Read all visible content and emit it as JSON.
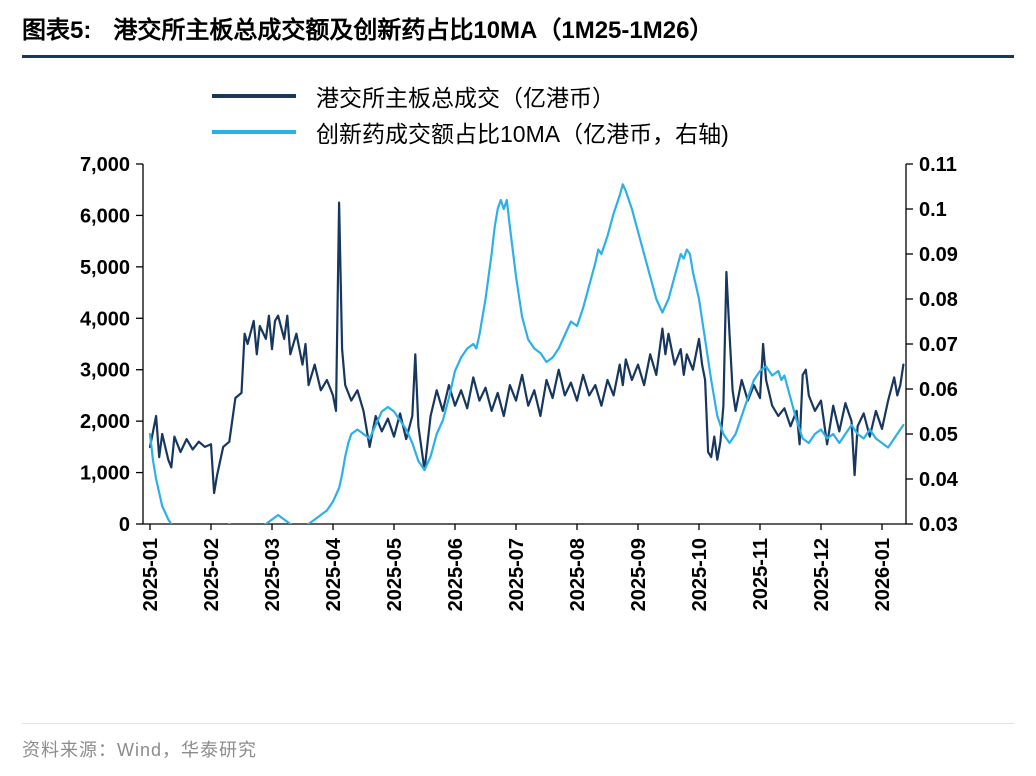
{
  "header": {
    "figure_label": "图表5:",
    "title": "港交所主板总成交额及创新药占比10MA（1M25-1M26）"
  },
  "legend": [
    {
      "label": "港交所主板总成交（亿港币）",
      "color": "#17375e"
    },
    {
      "label": "创新药成交额占比10MA（亿港币，右轴)",
      "color": "#2cb0e8"
    }
  ],
  "footer": {
    "source": "资料来源：Wind，华泰研究"
  },
  "chart_data": {
    "type": "line",
    "title": "港交所主板总成交额及创新药占比10MA（1M25-1M26）",
    "xlabel": "",
    "ylabel_left": "港交所主板总成交（亿港币）",
    "ylabel_right": "创新药成交额占比10MA",
    "grid": false,
    "legend_position": "top",
    "x_axis": {
      "unit": "month",
      "tick_labels": [
        "2025-01",
        "2025-02",
        "2025-03",
        "2025-04",
        "2025-05",
        "2025-06",
        "2025-07",
        "2025-08",
        "2025-09",
        "2025-10",
        "2025-11",
        "2025-12",
        "2026-01"
      ]
    },
    "y_left": {
      "min": 0,
      "max": 7000,
      "ticks": [
        [
          0,
          "0"
        ],
        [
          1000,
          "1,000"
        ],
        [
          2000,
          "2,000"
        ],
        [
          3000,
          "3,000"
        ],
        [
          4000,
          "4,000"
        ],
        [
          5000,
          "5,000"
        ],
        [
          6000,
          "6,000"
        ],
        [
          7000,
          "7,000"
        ]
      ]
    },
    "y_right": {
      "min": 0.03,
      "max": 0.11,
      "ticks": [
        [
          0.03,
          "0.03"
        ],
        [
          0.04,
          "0.04"
        ],
        [
          0.05,
          "0.05"
        ],
        [
          0.06,
          "0.06"
        ],
        [
          0.07,
          "0.07"
        ],
        [
          0.08,
          "0.08"
        ],
        [
          0.09,
          "0.09"
        ],
        [
          0.1,
          "0.1"
        ],
        [
          0.11,
          "0.11"
        ]
      ]
    },
    "series": [
      {
        "name": "港交所主板总成交（亿港币）",
        "axis": "left",
        "color": "#17375e",
        "points": [
          [
            0,
            1500
          ],
          [
            0.1,
            2100
          ],
          [
            0.15,
            1300
          ],
          [
            0.2,
            1750
          ],
          [
            0.3,
            1250
          ],
          [
            0.35,
            1100
          ],
          [
            0.4,
            1700
          ],
          [
            0.5,
            1400
          ],
          [
            0.6,
            1650
          ],
          [
            0.7,
            1450
          ],
          [
            0.8,
            1600
          ],
          [
            0.9,
            1500
          ],
          [
            1,
            1550
          ],
          [
            1.05,
            600
          ],
          [
            1.1,
            950
          ],
          [
            1.2,
            1500
          ],
          [
            1.3,
            1600
          ],
          [
            1.4,
            2450
          ],
          [
            1.5,
            2550
          ],
          [
            1.55,
            3700
          ],
          [
            1.6,
            3500
          ],
          [
            1.7,
            3950
          ],
          [
            1.75,
            3300
          ],
          [
            1.8,
            3850
          ],
          [
            1.9,
            3600
          ],
          [
            1.95,
            4050
          ],
          [
            2,
            3400
          ],
          [
            2.05,
            3950
          ],
          [
            2.1,
            4050
          ],
          [
            2.2,
            3600
          ],
          [
            2.25,
            4050
          ],
          [
            2.3,
            3300
          ],
          [
            2.4,
            3700
          ],
          [
            2.5,
            3100
          ],
          [
            2.55,
            3500
          ],
          [
            2.6,
            2700
          ],
          [
            2.7,
            3100
          ],
          [
            2.8,
            2600
          ],
          [
            2.9,
            2800
          ],
          [
            3,
            2500
          ],
          [
            3.05,
            2200
          ],
          [
            3.1,
            6250
          ],
          [
            3.15,
            3400
          ],
          [
            3.2,
            2700
          ],
          [
            3.3,
            2400
          ],
          [
            3.4,
            2600
          ],
          [
            3.5,
            2200
          ],
          [
            3.6,
            1500
          ],
          [
            3.7,
            2100
          ],
          [
            3.8,
            1800
          ],
          [
            3.9,
            2050
          ],
          [
            4,
            1700
          ],
          [
            4.1,
            2150
          ],
          [
            4.2,
            1650
          ],
          [
            4.3,
            2100
          ],
          [
            4.35,
            3300
          ],
          [
            4.4,
            1900
          ],
          [
            4.5,
            1050
          ],
          [
            4.6,
            2100
          ],
          [
            4.7,
            2600
          ],
          [
            4.8,
            2200
          ],
          [
            4.9,
            2700
          ],
          [
            5,
            2300
          ],
          [
            5.1,
            2600
          ],
          [
            5.2,
            2250
          ],
          [
            5.3,
            2850
          ],
          [
            5.4,
            2400
          ],
          [
            5.5,
            2650
          ],
          [
            5.6,
            2200
          ],
          [
            5.7,
            2550
          ],
          [
            5.8,
            2100
          ],
          [
            5.9,
            2700
          ],
          [
            6,
            2400
          ],
          [
            6.1,
            2900
          ],
          [
            6.2,
            2300
          ],
          [
            6.3,
            2600
          ],
          [
            6.4,
            2100
          ],
          [
            6.5,
            2800
          ],
          [
            6.6,
            2450
          ],
          [
            6.7,
            3000
          ],
          [
            6.8,
            2500
          ],
          [
            6.9,
            2750
          ],
          [
            7,
            2400
          ],
          [
            7.1,
            2900
          ],
          [
            7.2,
            2500
          ],
          [
            7.3,
            2700
          ],
          [
            7.4,
            2300
          ],
          [
            7.5,
            2800
          ],
          [
            7.6,
            2500
          ],
          [
            7.7,
            3100
          ],
          [
            7.75,
            2700
          ],
          [
            7.8,
            3200
          ],
          [
            7.9,
            2800
          ],
          [
            8,
            3100
          ],
          [
            8.1,
            2700
          ],
          [
            8.2,
            3300
          ],
          [
            8.3,
            2900
          ],
          [
            8.4,
            3800
          ],
          [
            8.45,
            3300
          ],
          [
            8.5,
            3700
          ],
          [
            8.6,
            3100
          ],
          [
            8.7,
            3400
          ],
          [
            8.75,
            2900
          ],
          [
            8.8,
            3300
          ],
          [
            8.9,
            3000
          ],
          [
            9,
            3600
          ],
          [
            9.05,
            3100
          ],
          [
            9.1,
            2800
          ],
          [
            9.15,
            1400
          ],
          [
            9.2,
            1300
          ],
          [
            9.25,
            1700
          ],
          [
            9.3,
            1250
          ],
          [
            9.35,
            1600
          ],
          [
            9.4,
            2300
          ],
          [
            9.45,
            4900
          ],
          [
            9.5,
            3700
          ],
          [
            9.55,
            2600
          ],
          [
            9.6,
            2200
          ],
          [
            9.7,
            2800
          ],
          [
            9.8,
            2400
          ],
          [
            9.9,
            2700
          ],
          [
            10,
            2450
          ],
          [
            10.05,
            3500
          ],
          [
            10.1,
            2800
          ],
          [
            10.2,
            2300
          ],
          [
            10.3,
            2100
          ],
          [
            10.4,
            2250
          ],
          [
            10.5,
            1900
          ],
          [
            10.6,
            2200
          ],
          [
            10.65,
            1550
          ],
          [
            10.7,
            2900
          ],
          [
            10.75,
            3000
          ],
          [
            10.8,
            2500
          ],
          [
            10.9,
            2200
          ],
          [
            11,
            2400
          ],
          [
            11.1,
            1550
          ],
          [
            11.2,
            2300
          ],
          [
            11.3,
            1800
          ],
          [
            11.4,
            2350
          ],
          [
            11.5,
            2000
          ],
          [
            11.55,
            950
          ],
          [
            11.6,
            1900
          ],
          [
            11.7,
            2150
          ],
          [
            11.8,
            1700
          ],
          [
            11.9,
            2200
          ],
          [
            12,
            1850
          ],
          [
            12.1,
            2400
          ],
          [
            12.2,
            2850
          ],
          [
            12.25,
            2500
          ],
          [
            12.3,
            2700
          ],
          [
            12.35,
            3100
          ]
        ]
      },
      {
        "name": "创新药成交额占比10MA（亿港币，右轴)",
        "axis": "right",
        "color": "#2cb0e8",
        "points": [
          [
            0,
            0.05
          ],
          [
            0.05,
            0.044
          ],
          [
            0.1,
            0.04
          ],
          [
            0.2,
            0.034
          ],
          [
            0.3,
            0.031
          ],
          [
            0.4,
            0.029
          ],
          [
            0.6,
            0.028
          ],
          [
            0.8,
            0.029
          ],
          [
            1,
            0.028
          ],
          [
            1.2,
            0.029
          ],
          [
            1.3,
            0.03
          ],
          [
            1.4,
            0.029
          ],
          [
            1.6,
            0.028
          ],
          [
            1.8,
            0.029
          ],
          [
            1.9,
            0.03
          ],
          [
            2,
            0.031
          ],
          [
            2.1,
            0.032
          ],
          [
            2.2,
            0.031
          ],
          [
            2.3,
            0.03
          ],
          [
            2.4,
            0.029
          ],
          [
            2.5,
            0.029
          ],
          [
            2.6,
            0.03
          ],
          [
            2.7,
            0.031
          ],
          [
            2.8,
            0.032
          ],
          [
            2.9,
            0.033
          ],
          [
            3,
            0.035
          ],
          [
            3.1,
            0.038
          ],
          [
            3.15,
            0.041
          ],
          [
            3.2,
            0.045
          ],
          [
            3.25,
            0.048
          ],
          [
            3.3,
            0.05
          ],
          [
            3.4,
            0.051
          ],
          [
            3.5,
            0.05
          ],
          [
            3.6,
            0.049
          ],
          [
            3.7,
            0.052
          ],
          [
            3.8,
            0.055
          ],
          [
            3.9,
            0.056
          ],
          [
            4,
            0.055
          ],
          [
            4.1,
            0.053
          ],
          [
            4.2,
            0.051
          ],
          [
            4.3,
            0.048
          ],
          [
            4.4,
            0.044
          ],
          [
            4.5,
            0.042
          ],
          [
            4.6,
            0.045
          ],
          [
            4.7,
            0.05
          ],
          [
            4.8,
            0.053
          ],
          [
            4.9,
            0.058
          ],
          [
            5,
            0.064
          ],
          [
            5.1,
            0.067
          ],
          [
            5.2,
            0.069
          ],
          [
            5.3,
            0.07
          ],
          [
            5.35,
            0.069
          ],
          [
            5.4,
            0.072
          ],
          [
            5.5,
            0.08
          ],
          [
            5.6,
            0.09
          ],
          [
            5.65,
            0.096
          ],
          [
            5.7,
            0.1
          ],
          [
            5.75,
            0.102
          ],
          [
            5.8,
            0.1
          ],
          [
            5.85,
            0.102
          ],
          [
            5.9,
            0.096
          ],
          [
            6,
            0.085
          ],
          [
            6.1,
            0.076
          ],
          [
            6.2,
            0.071
          ],
          [
            6.3,
            0.069
          ],
          [
            6.4,
            0.068
          ],
          [
            6.5,
            0.066
          ],
          [
            6.6,
            0.067
          ],
          [
            6.7,
            0.069
          ],
          [
            6.8,
            0.072
          ],
          [
            6.9,
            0.075
          ],
          [
            7,
            0.074
          ],
          [
            7.1,
            0.078
          ],
          [
            7.2,
            0.083
          ],
          [
            7.3,
            0.088
          ],
          [
            7.35,
            0.091
          ],
          [
            7.4,
            0.09
          ],
          [
            7.5,
            0.094
          ],
          [
            7.6,
            0.099
          ],
          [
            7.7,
            0.103
          ],
          [
            7.75,
            0.1055
          ],
          [
            7.8,
            0.104
          ],
          [
            7.9,
            0.1
          ],
          [
            8,
            0.095
          ],
          [
            8.1,
            0.09
          ],
          [
            8.2,
            0.085
          ],
          [
            8.3,
            0.08
          ],
          [
            8.4,
            0.077
          ],
          [
            8.5,
            0.08
          ],
          [
            8.6,
            0.085
          ],
          [
            8.7,
            0.09
          ],
          [
            8.75,
            0.089
          ],
          [
            8.8,
            0.091
          ],
          [
            8.85,
            0.09
          ],
          [
            8.9,
            0.086
          ],
          [
            9,
            0.08
          ],
          [
            9.1,
            0.071
          ],
          [
            9.2,
            0.062
          ],
          [
            9.3,
            0.054
          ],
          [
            9.4,
            0.05
          ],
          [
            9.5,
            0.048
          ],
          [
            9.6,
            0.05
          ],
          [
            9.7,
            0.054
          ],
          [
            9.8,
            0.058
          ],
          [
            9.9,
            0.062
          ],
          [
            10,
            0.064
          ],
          [
            10.1,
            0.065
          ],
          [
            10.2,
            0.063
          ],
          [
            10.3,
            0.064
          ],
          [
            10.35,
            0.062
          ],
          [
            10.4,
            0.063
          ],
          [
            10.5,
            0.058
          ],
          [
            10.6,
            0.053
          ],
          [
            10.7,
            0.049
          ],
          [
            10.8,
            0.048
          ],
          [
            10.9,
            0.05
          ],
          [
            11,
            0.051
          ],
          [
            11.1,
            0.049
          ],
          [
            11.2,
            0.05
          ],
          [
            11.3,
            0.048
          ],
          [
            11.4,
            0.05
          ],
          [
            11.5,
            0.052
          ],
          [
            11.6,
            0.05
          ],
          [
            11.7,
            0.049
          ],
          [
            11.8,
            0.051
          ],
          [
            11.9,
            0.049
          ],
          [
            12,
            0.048
          ],
          [
            12.1,
            0.047
          ],
          [
            12.2,
            0.049
          ],
          [
            12.3,
            0.051
          ],
          [
            12.35,
            0.052
          ]
        ]
      }
    ]
  }
}
